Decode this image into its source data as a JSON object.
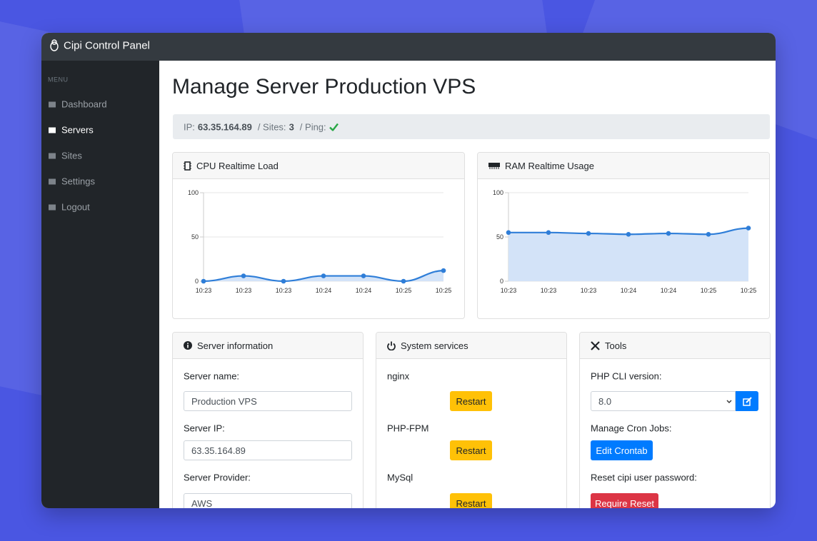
{
  "navbar": {
    "brand": "Cipi Control Panel"
  },
  "sidebar": {
    "heading": "MENU",
    "items": [
      "Dashboard",
      "Servers",
      "Sites",
      "Settings",
      "Logout"
    ]
  },
  "page": {
    "title": "Manage Server Production VPS"
  },
  "status": {
    "ip_label": "IP:",
    "ip": "63.35.164.89",
    "sites_label": "/ Sites:",
    "sites": "3",
    "ping_label": "/ Ping:"
  },
  "chart_data": [
    {
      "type": "line",
      "title": "CPU Realtime Load",
      "categories": [
        "10:23",
        "10:23",
        "10:23",
        "10:24",
        "10:24",
        "10:25",
        "10:25"
      ],
      "values": [
        0,
        6,
        0,
        6,
        6,
        0,
        12
      ],
      "color": "#2f7ed8",
      "fill": "#d3e3f8",
      "ylim": [
        0,
        100
      ],
      "yticks": [
        0,
        50,
        100
      ],
      "grid": true
    },
    {
      "type": "line",
      "title": "RAM Realtime Usage",
      "categories": [
        "10:23",
        "10:23",
        "10:23",
        "10:24",
        "10:24",
        "10:25",
        "10:25"
      ],
      "values": [
        55,
        55,
        54,
        53,
        54,
        53,
        60
      ],
      "color": "#2f7ed8",
      "fill": "#d3e3f8",
      "ylim": [
        0,
        100
      ],
      "yticks": [
        0,
        50,
        100
      ],
      "grid": true
    }
  ],
  "server_info": {
    "title": "Server information",
    "fields": [
      {
        "label": "Server name:",
        "value": "Production VPS"
      },
      {
        "label": "Server IP:",
        "value": "63.35.164.89"
      },
      {
        "label": "Server Provider:",
        "value": "AWS"
      }
    ]
  },
  "services": {
    "title": "System services",
    "button": "Restart",
    "items": [
      "nginx",
      "PHP-FPM",
      "MySql"
    ]
  },
  "tools": {
    "title": "Tools",
    "php_label": "PHP CLI version:",
    "php_value": "8.0",
    "cron_label": "Manage Cron Jobs:",
    "cron_button": "Edit Crontab",
    "reset_label": "Reset cipi user password:",
    "reset_button": "Require Reset"
  }
}
